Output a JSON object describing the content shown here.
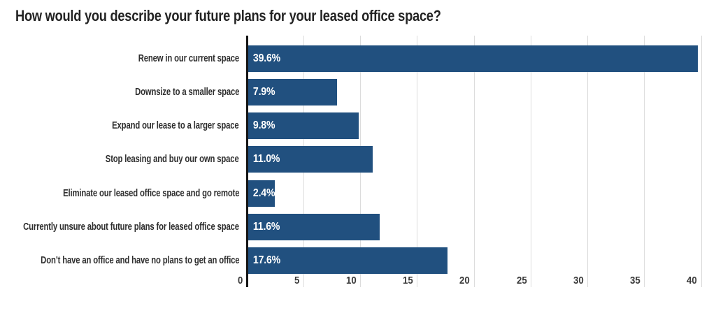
{
  "title": "How would you describe your future plans for your leased office space?",
  "chart_data": {
    "type": "bar",
    "orientation": "horizontal",
    "title": "How would you describe your future plans for your leased office space?",
    "categories": [
      "Renew in our current space",
      "Downsize to a smaller space",
      "Expand our lease to a larger space",
      "Stop leasing and buy our own space",
      "Eliminate our leased office space and go remote",
      "Currently unsure about future plans for leased office space",
      "Don’t have an office and have no plans to get an office"
    ],
    "values": [
      39.6,
      7.9,
      9.8,
      11.0,
      2.4,
      11.6,
      17.6
    ],
    "value_labels": [
      "39.6%",
      "7.9%",
      "9.8%",
      "11.0%",
      "2.4%",
      "11.6%",
      "17.6%"
    ],
    "x_ticks": [
      0,
      5,
      10,
      15,
      20,
      25,
      30,
      35,
      40
    ],
    "xlim": [
      0,
      40.25
    ],
    "xlabel": "",
    "ylabel": "",
    "grid": "vertical",
    "legend": "none",
    "bar_color": "#21507F",
    "value_label_color": "#FFFFFF",
    "axis_line_color": "#161616",
    "gridline_color": "#DCDCDC",
    "text_color": "#2E2E2E"
  }
}
